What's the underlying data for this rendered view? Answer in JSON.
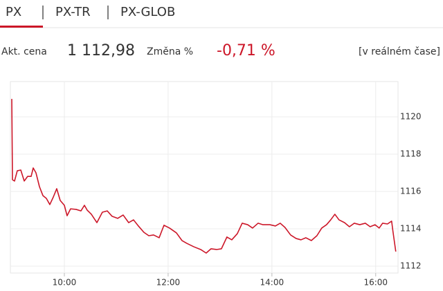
{
  "tabs": [
    "PX",
    "PX-TR",
    "PX-GLOB"
  ],
  "summary": {
    "price_label": "Akt. cena",
    "price": "1 112,98",
    "change_label": "Změna %",
    "change": "-0,71 %",
    "realtime": "[v reálném čase]"
  },
  "chart_data": {
    "type": "line",
    "x": [
      8.987,
      9.0,
      9.04,
      9.093,
      9.16,
      9.227,
      9.293,
      9.36,
      9.4,
      9.453,
      9.52,
      9.587,
      9.653,
      9.72,
      9.787,
      9.853,
      9.92,
      10.0,
      10.053,
      10.12,
      10.227,
      10.32,
      10.387,
      10.44,
      10.52,
      10.627,
      10.733,
      10.827,
      10.92,
      11.027,
      11.133,
      11.24,
      11.333,
      11.427,
      11.533,
      11.627,
      11.72,
      11.827,
      11.92,
      12.027,
      12.16,
      12.267,
      12.36,
      12.493,
      12.627,
      12.733,
      12.827,
      12.933,
      13.027,
      13.133,
      13.227,
      13.333,
      13.427,
      13.533,
      13.627,
      13.733,
      13.827,
      13.96,
      14.067,
      14.16,
      14.253,
      14.36,
      14.467,
      14.56,
      14.653,
      14.76,
      14.867,
      14.96,
      15.053,
      15.133,
      15.213,
      15.293,
      15.4,
      15.493,
      15.587,
      15.693,
      15.8,
      15.893,
      15.987,
      16.067,
      16.133,
      16.227,
      16.307,
      16.333,
      16.387
    ],
    "series": [
      {
        "color": "#cc1628",
        "values": [
          1120.96,
          1116.63,
          1116.56,
          1117.11,
          1117.15,
          1116.56,
          1116.81,
          1116.81,
          1117.26,
          1117.0,
          1116.26,
          1115.78,
          1115.63,
          1115.3,
          1115.7,
          1116.15,
          1115.52,
          1115.26,
          1114.7,
          1115.07,
          1115.04,
          1114.96,
          1115.26,
          1115.0,
          1114.78,
          1114.33,
          1114.89,
          1114.96,
          1114.67,
          1114.56,
          1114.74,
          1114.33,
          1114.48,
          1114.15,
          1113.81,
          1113.63,
          1113.67,
          1113.52,
          1114.19,
          1114.04,
          1113.78,
          1113.37,
          1113.22,
          1113.04,
          1112.89,
          1112.7,
          1112.93,
          1112.89,
          1112.93,
          1113.56,
          1113.41,
          1113.74,
          1114.3,
          1114.22,
          1114.04,
          1114.3,
          1114.22,
          1114.22,
          1114.15,
          1114.3,
          1114.07,
          1113.67,
          1113.48,
          1113.41,
          1113.52,
          1113.37,
          1113.63,
          1114.04,
          1114.22,
          1114.48,
          1114.78,
          1114.48,
          1114.33,
          1114.11,
          1114.3,
          1114.22,
          1114.3,
          1114.11,
          1114.22,
          1114.04,
          1114.3,
          1114.26,
          1114.41,
          1113.85,
          1112.78
        ]
      }
    ],
    "xlim": [
      8.96,
      16.43
    ],
    "xticks": [
      {
        "value": 10,
        "label": "10:00"
      },
      {
        "value": 12,
        "label": "12:00"
      },
      {
        "value": 14,
        "label": "14:00"
      },
      {
        "value": 16,
        "label": "16:00"
      }
    ],
    "ylim": [
      1111.63,
      1121.89
    ],
    "yticks": [
      1112,
      1114,
      1116,
      1118,
      1120
    ],
    "grid": true
  }
}
